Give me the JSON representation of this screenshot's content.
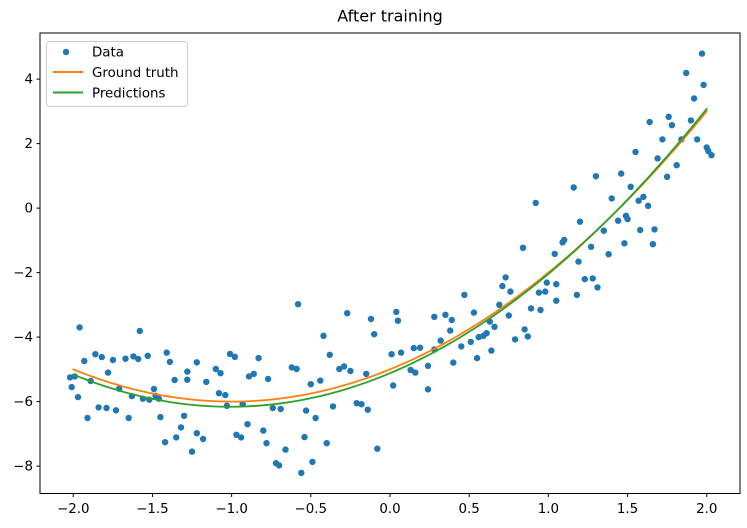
{
  "chart_data": {
    "type": "scatter",
    "title": "After training",
    "xlabel": "",
    "ylabel": "",
    "grid": false,
    "legend_position": "upper left",
    "xlim": [
      -2.21,
      2.21
    ],
    "ylim": [
      -8.85,
      5.43
    ],
    "x_ticks": {
      "values": [
        -2.0,
        -1.5,
        -1.0,
        -0.5,
        0.0,
        0.5,
        1.0,
        1.5,
        2.0
      ],
      "labels": [
        "−2.0",
        "−1.5",
        "−1.0",
        "−0.5",
        "0.0",
        "0.5",
        "1.0",
        "1.5",
        "2.0"
      ]
    },
    "y_ticks": {
      "values": [
        4,
        2,
        0,
        -2,
        -4,
        -6,
        -8
      ],
      "labels": [
        "4",
        "2",
        "0",
        "−2",
        "−4",
        "−6",
        "−8"
      ]
    },
    "series": [
      {
        "name": "Data",
        "type": "scatter",
        "color": "#1f77b4",
        "marker": "point",
        "marker_radius": 3.2,
        "points": [
          [
            -1.96,
            -3.7
          ],
          [
            -1.58,
            -3.81
          ],
          [
            -1.93,
            -4.74
          ],
          [
            -1.86,
            -4.53
          ],
          [
            -1.82,
            -4.62
          ],
          [
            -1.75,
            -4.71
          ],
          [
            -1.67,
            -4.67
          ],
          [
            -1.62,
            -4.6
          ],
          [
            -1.59,
            -4.68
          ],
          [
            -1.53,
            -4.58
          ],
          [
            -1.41,
            -4.48
          ],
          [
            -1.39,
            -4.77
          ],
          [
            -1.36,
            -5.33
          ],
          [
            -1.28,
            -5.07
          ],
          [
            -1.28,
            -5.32
          ],
          [
            -1.22,
            -4.78
          ],
          [
            -1.16,
            -5.39
          ],
          [
            -2.02,
            -5.25
          ],
          [
            -1.99,
            -5.22
          ],
          [
            -2.01,
            -5.55
          ],
          [
            -1.97,
            -5.86
          ],
          [
            -1.89,
            -5.36
          ],
          [
            -1.78,
            -5.1
          ],
          [
            -1.71,
            -5.6
          ],
          [
            -1.63,
            -5.83
          ],
          [
            -1.56,
            -5.91
          ],
          [
            -1.52,
            -5.94
          ],
          [
            -1.48,
            -5.82
          ],
          [
            -1.49,
            -5.61
          ],
          [
            -1.46,
            -5.91
          ],
          [
            -1.84,
            -6.18
          ],
          [
            -1.79,
            -6.2
          ],
          [
            -1.73,
            -6.27
          ],
          [
            -1.91,
            -6.51
          ],
          [
            -1.65,
            -6.51
          ],
          [
            -1.45,
            -6.48
          ],
          [
            -1.32,
            -6.8
          ],
          [
            -1.3,
            -6.44
          ],
          [
            -1.22,
            -6.98
          ],
          [
            -1.18,
            -7.16
          ],
          [
            -1.25,
            -7.55
          ],
          [
            -1.42,
            -7.26
          ],
          [
            -1.35,
            -7.11
          ],
          [
            -1.01,
            -4.52
          ],
          [
            -0.98,
            -4.61
          ],
          [
            -1.1,
            -4.99
          ],
          [
            -1.07,
            -5.12
          ],
          [
            -1.08,
            -5.74
          ],
          [
            -1.04,
            -5.8
          ],
          [
            -1.03,
            -6.13
          ],
          [
            -0.58,
            -2.98
          ],
          [
            -0.27,
            -3.26
          ],
          [
            -0.12,
            -3.44
          ],
          [
            -0.1,
            -3.91
          ],
          [
            -0.42,
            -3.96
          ],
          [
            -0.83,
            -4.65
          ],
          [
            -0.38,
            -4.55
          ],
          [
            -0.89,
            -5.22
          ],
          [
            -0.86,
            -5.14
          ],
          [
            -0.77,
            -5.3
          ],
          [
            -0.62,
            -4.94
          ],
          [
            -0.59,
            -4.99
          ],
          [
            -0.5,
            -5.46
          ],
          [
            -0.44,
            -5.35
          ],
          [
            -0.32,
            -4.99
          ],
          [
            -0.29,
            -4.91
          ],
          [
            -0.25,
            -5.05
          ],
          [
            -0.15,
            -5.14
          ],
          [
            -0.21,
            -6.05
          ],
          [
            -0.18,
            -6.08
          ],
          [
            -0.93,
            -6.08
          ],
          [
            -0.74,
            -6.2
          ],
          [
            -0.69,
            -6.23
          ],
          [
            -0.53,
            -6.28
          ],
          [
            -0.47,
            -6.51
          ],
          [
            -0.36,
            -6.15
          ],
          [
            -0.14,
            -6.25
          ],
          [
            -0.9,
            -6.7
          ],
          [
            -0.97,
            -7.03
          ],
          [
            -0.94,
            -7.11
          ],
          [
            -0.8,
            -6.9
          ],
          [
            -0.78,
            -7.29
          ],
          [
            -0.66,
            -7.49
          ],
          [
            -0.54,
            -7.1
          ],
          [
            -0.4,
            -7.29
          ],
          [
            -0.72,
            -7.91
          ],
          [
            -0.7,
            -7.98
          ],
          [
            -0.56,
            -8.21
          ],
          [
            -0.49,
            -7.87
          ],
          [
            -0.08,
            -7.46
          ],
          [
            0.04,
            -3.22
          ],
          [
            0.05,
            -3.49
          ],
          [
            0.47,
            -2.69
          ],
          [
            0.53,
            -3.24
          ],
          [
            0.28,
            -3.37
          ],
          [
            0.35,
            -3.31
          ],
          [
            0.39,
            -3.47
          ],
          [
            0.38,
            -3.8
          ],
          [
            0.32,
            -4.11
          ],
          [
            0.28,
            -4.38
          ],
          [
            0.24,
            -4.89
          ],
          [
            0.15,
            -4.34
          ],
          [
            0.19,
            -4.33
          ],
          [
            0.07,
            -4.48
          ],
          [
            0.01,
            -4.53
          ],
          [
            0.13,
            -5.02
          ],
          [
            0.16,
            -5.1
          ],
          [
            0.73,
            -2.15
          ],
          [
            0.71,
            -2.42
          ],
          [
            0.76,
            -2.59
          ],
          [
            0.99,
            -2.31
          ],
          [
            0.98,
            -2.59
          ],
          [
            0.94,
            -2.62
          ],
          [
            0.89,
            -3.11
          ],
          [
            0.95,
            -3.16
          ],
          [
            0.69,
            -3.0
          ],
          [
            0.75,
            -3.33
          ],
          [
            0.66,
            -3.68
          ],
          [
            0.63,
            -3.52
          ],
          [
            0.85,
            -3.76
          ],
          [
            0.87,
            -3.98
          ],
          [
            0.79,
            -4.07
          ],
          [
            0.56,
            -4.0
          ],
          [
            0.59,
            -3.96
          ],
          [
            0.61,
            -3.88
          ],
          [
            0.51,
            -4.15
          ],
          [
            0.45,
            -4.29
          ],
          [
            0.64,
            -4.42
          ],
          [
            0.55,
            -4.65
          ],
          [
            0.4,
            -4.79
          ],
          [
            0.02,
            -5.5
          ],
          [
            0.24,
            -5.62
          ],
          [
            0.92,
            0.16
          ],
          [
            0.84,
            -1.23
          ],
          [
            1.09,
            -1.06
          ],
          [
            1.04,
            -1.42
          ],
          [
            1.05,
            -2.36
          ],
          [
            1.05,
            -2.87
          ],
          [
            1.97,
            4.79
          ],
          [
            1.87,
            4.19
          ],
          [
            1.98,
            3.82
          ],
          [
            1.92,
            3.4
          ],
          [
            1.64,
            2.67
          ],
          [
            1.76,
            2.83
          ],
          [
            1.78,
            2.57
          ],
          [
            1.9,
            2.72
          ],
          [
            1.84,
            2.13
          ],
          [
            1.72,
            2.13
          ],
          [
            1.94,
            2.13
          ],
          [
            2.0,
            1.88
          ],
          [
            2.01,
            1.77
          ],
          [
            2.03,
            1.64
          ],
          [
            1.55,
            1.74
          ],
          [
            1.69,
            1.54
          ],
          [
            1.81,
            1.33
          ],
          [
            1.75,
            0.97
          ],
          [
            1.3,
            0.99
          ],
          [
            1.16,
            0.64
          ],
          [
            1.46,
            1.07
          ],
          [
            1.52,
            0.66
          ],
          [
            1.4,
            0.3
          ],
          [
            1.57,
            0.23
          ],
          [
            1.6,
            0.35
          ],
          [
            1.63,
            0.07
          ],
          [
            1.49,
            -0.24
          ],
          [
            1.44,
            -0.39
          ],
          [
            1.5,
            -0.34
          ],
          [
            1.2,
            -0.42
          ],
          [
            1.35,
            -0.7
          ],
          [
            1.58,
            -0.68
          ],
          [
            1.67,
            -0.66
          ],
          [
            1.1,
            -0.99
          ],
          [
            1.27,
            -1.2
          ],
          [
            1.48,
            -1.09
          ],
          [
            1.66,
            -1.12
          ],
          [
            1.38,
            -1.43
          ],
          [
            1.19,
            -1.66
          ],
          [
            1.23,
            -2.2
          ],
          [
            1.28,
            -2.18
          ],
          [
            1.31,
            -2.46
          ],
          [
            1.18,
            -2.69
          ]
        ]
      },
      {
        "name": "Ground truth",
        "type": "line",
        "color": "#ff7f0e",
        "model": "quadratic",
        "coeffs": [
          1.0,
          2.0,
          -5.0
        ],
        "x_range": [
          -2.0,
          2.0
        ]
      },
      {
        "name": "Predictions",
        "type": "line",
        "color": "#2ca02c",
        "model": "quadratic",
        "coeffs": [
          1.02,
          2.06,
          -5.12
        ],
        "x_range": [
          -2.0,
          2.0
        ]
      }
    ]
  }
}
